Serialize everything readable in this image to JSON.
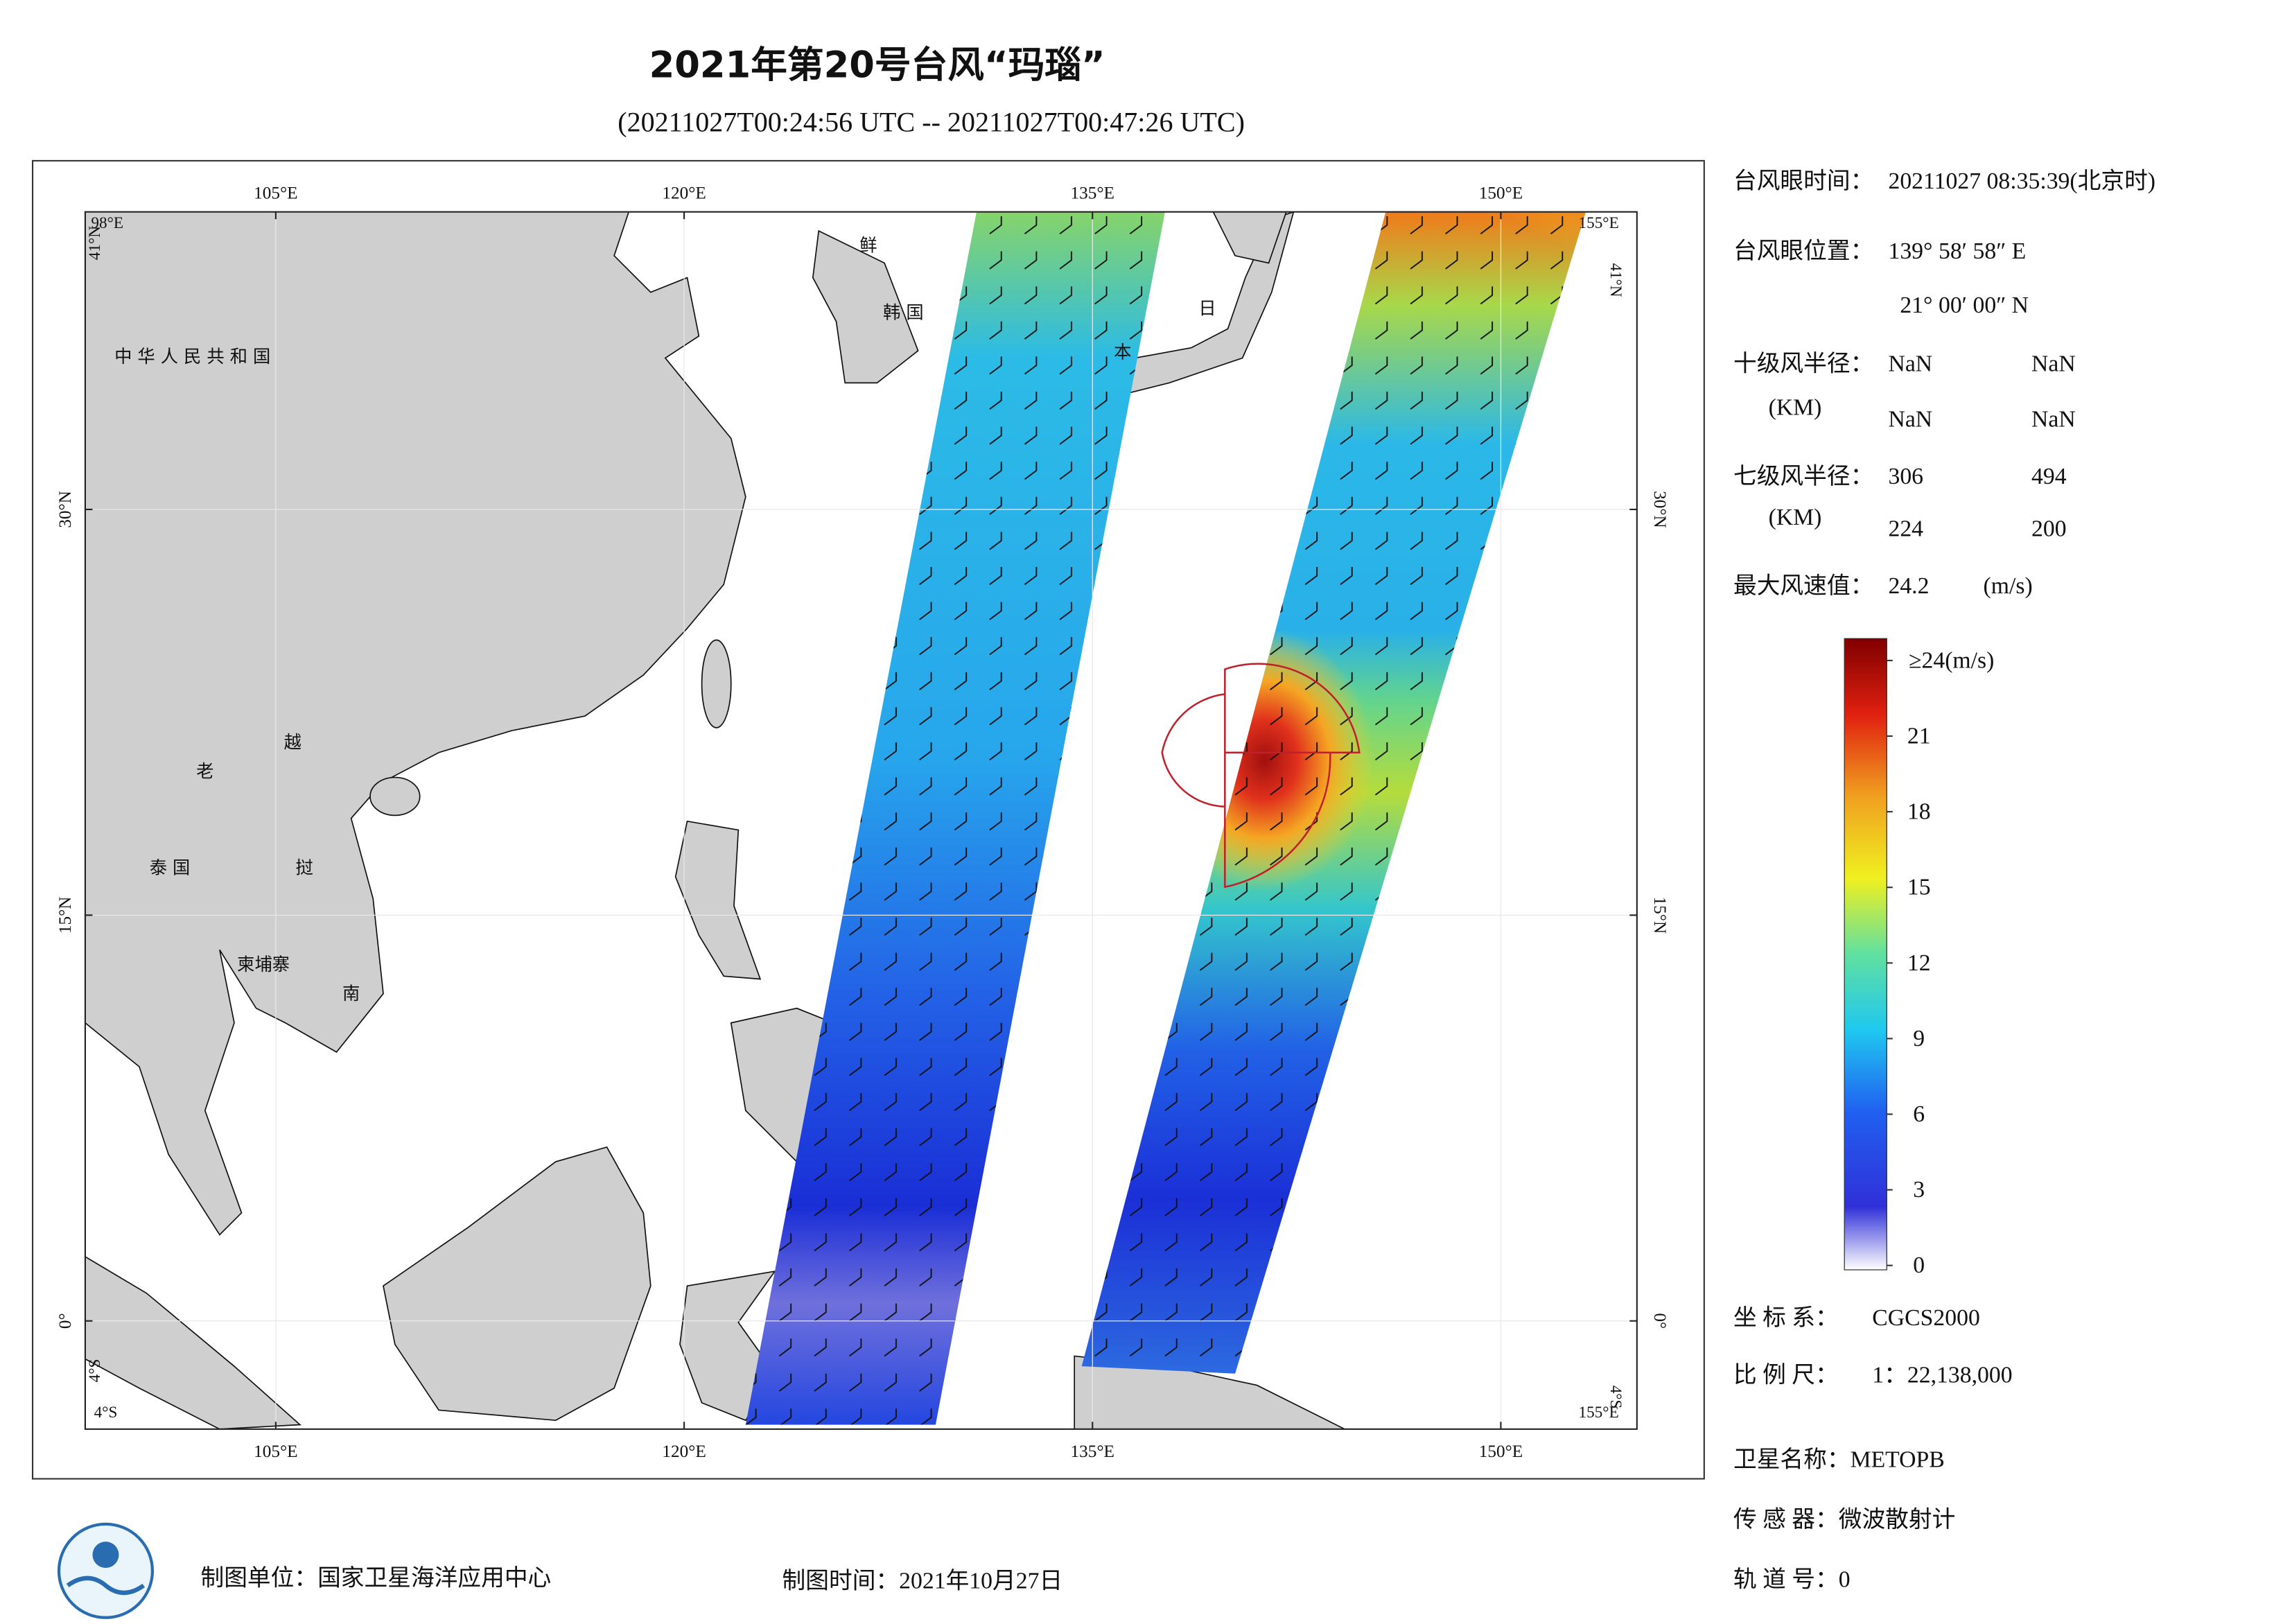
{
  "header": {
    "title": "2021年第20号台风“玛瑙”",
    "subtitle": "(20211027T00:24:56 UTC -- 20211027T00:47:26 UTC)"
  },
  "map": {
    "xlim": [
      98,
      155
    ],
    "ylim": [
      -4,
      41
    ],
    "xticks": [
      {
        "value": 105,
        "label": "105°E"
      },
      {
        "value": 120,
        "label": "120°E"
      },
      {
        "value": 135,
        "label": "135°E"
      },
      {
        "value": 150,
        "label": "150°E"
      }
    ],
    "yticks": [
      {
        "value": 0,
        "label": "0°"
      },
      {
        "value": 15,
        "label": "15°N"
      },
      {
        "value": 30,
        "label": "30°N"
      }
    ],
    "corners": {
      "top_left": [
        "98°E",
        "41°N"
      ],
      "top_right": [
        "155°E",
        "41°N"
      ],
      "bottom_left": [
        "4°S",
        "4°S"
      ],
      "bottom_right": [
        "155°E",
        "4°S"
      ]
    },
    "place_labels": [
      "中 华 人 民 共 和 国",
      "老",
      "越",
      "泰 国",
      "挝",
      "柬埔寨",
      "南",
      "鲜",
      "韩 国",
      "日",
      "本"
    ]
  },
  "info": {
    "eye_time_label": "台风眼时间：",
    "eye_time": "20211027 08:35:39(北京时)",
    "eye_pos_label": "台风眼位置：",
    "eye_lon": "139° 58′ 58″ E",
    "eye_lat": "21° 00′ 00″ N",
    "r10_label": "十级风半径：",
    "r10_unit": "(KM)",
    "r10": [
      "NaN",
      "NaN",
      "NaN",
      "NaN"
    ],
    "r7_label": "七级风半径：",
    "r7_unit": "(KM)",
    "r7": [
      306,
      494,
      224,
      200
    ],
    "max_wind_label": "最大风速值：",
    "max_wind": 24.2,
    "max_wind_unit": "(m/s)",
    "crs_label": "坐 标 系：",
    "crs": "CGCS2000",
    "scale_label": "比 例 尺：",
    "scale": "1：22,138,000",
    "satellite": "卫星名称：METOPB",
    "sensor": "传 感 器：微波散射计",
    "orbit": "轨 道 号：0"
  },
  "colorbar": {
    "ylim": [
      0,
      24
    ],
    "ticks": [
      0,
      3,
      6,
      9,
      12,
      15,
      18,
      21,
      {
        "value": 24,
        "label": "≥24(m/s)"
      }
    ]
  },
  "footer": {
    "unit": "制图单位：国家卫星海洋应用中心",
    "time": "制图时间：2021年10月27日"
  }
}
